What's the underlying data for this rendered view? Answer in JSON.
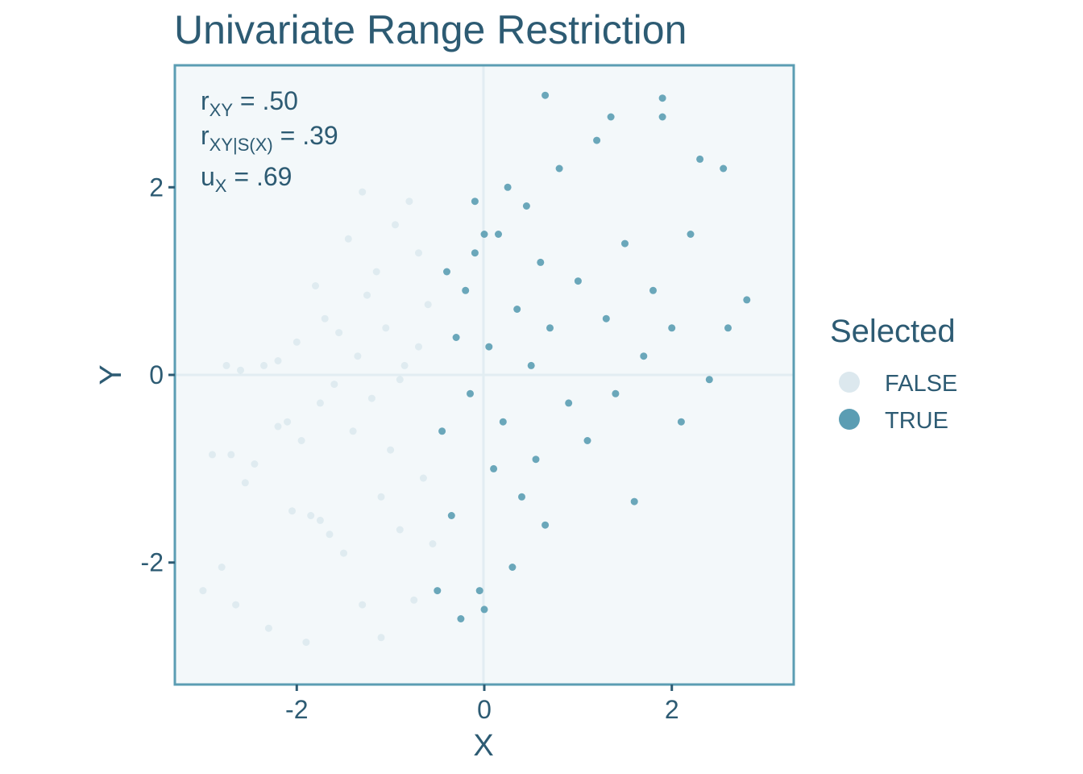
{
  "chart_data": {
    "type": "scatter",
    "title": "Univariate Range Restriction",
    "xlabel": "X",
    "ylabel": "Y",
    "xlim": [
      -3.3,
      3.3
    ],
    "ylim": [
      -3.3,
      3.3
    ],
    "x_ticks": [
      -2,
      0,
      2
    ],
    "y_ticks": [
      -2,
      0,
      2
    ],
    "x_tick_labels": [
      "-2",
      "0",
      "2"
    ],
    "y_tick_labels": [
      "-2",
      "0",
      "2"
    ],
    "grid": "major lines at 0",
    "selection_cutoff_x": -0.5,
    "annotation": {
      "r_xy": {
        "base": "r",
        "sub": "XY",
        "value": " = .50"
      },
      "r_xy_s": {
        "base": "r",
        "sub": "XY|S(X)",
        "value": " = .39"
      },
      "u_x": {
        "base": "u",
        "sub": "X",
        "value": " = .69"
      }
    },
    "legend": {
      "title": "Selected",
      "position": "right",
      "entries": [
        {
          "label": "FALSE",
          "color": "#dce8ee"
        },
        {
          "label": "TRUE",
          "color": "#5b9db3"
        }
      ]
    },
    "series": [
      {
        "name": "FALSE",
        "color": "#b9d4de",
        "opacity": 0.35,
        "x": [
          -3.0,
          -2.9,
          -2.8,
          -2.75,
          -2.7,
          -2.65,
          -2.6,
          -2.55,
          -2.45,
          -2.35,
          -2.3,
          -2.2,
          -2.1,
          -2.05,
          -2.0,
          -1.95,
          -1.9,
          -1.85,
          -1.8,
          -1.75,
          -1.7,
          -1.65,
          -1.6,
          -1.55,
          -1.5,
          -1.45,
          -1.4,
          -1.35,
          -1.3,
          -1.25,
          -1.2,
          -1.15,
          -1.1,
          -1.05,
          -1.0,
          -0.95,
          -0.9,
          -0.85,
          -0.8,
          -0.75,
          -0.7,
          -0.65,
          -0.6,
          -0.55,
          -1.3,
          -0.9,
          -1.75,
          -2.2,
          -1.1,
          -0.7
        ],
        "y": [
          -2.3,
          -0.85,
          -2.05,
          0.1,
          -0.85,
          -2.45,
          0.05,
          -1.15,
          -0.95,
          0.1,
          -2.7,
          0.15,
          -0.5,
          -1.45,
          0.35,
          -0.7,
          -2.85,
          -1.5,
          0.95,
          -0.3,
          0.6,
          -1.7,
          -0.1,
          0.45,
          -1.9,
          1.45,
          -0.6,
          0.2,
          -2.45,
          0.85,
          -0.25,
          1.1,
          -1.3,
          0.5,
          -0.8,
          1.6,
          -1.65,
          0.1,
          1.85,
          -2.4,
          0.3,
          -1.1,
          0.75,
          -1.8,
          1.95,
          -0.05,
          -1.55,
          -0.55,
          -2.8,
          1.3
        ]
      },
      {
        "name": "TRUE",
        "color": "#5b9db3",
        "opacity": 0.9,
        "x": [
          -0.5,
          -0.45,
          -0.4,
          -0.35,
          -0.3,
          -0.25,
          -0.2,
          -0.15,
          -0.1,
          -0.05,
          0.0,
          0.05,
          0.1,
          0.15,
          0.2,
          0.25,
          0.3,
          0.35,
          0.4,
          0.45,
          0.5,
          0.55,
          0.6,
          0.65,
          0.7,
          0.8,
          0.9,
          1.0,
          1.1,
          1.2,
          1.3,
          1.4,
          1.5,
          1.6,
          1.7,
          1.8,
          1.9,
          2.0,
          2.1,
          2.2,
          2.3,
          2.4,
          2.55,
          2.6,
          2.8,
          0.65,
          1.9,
          -0.1,
          0.0,
          1.35
        ],
        "y": [
          -2.3,
          -0.6,
          1.1,
          -1.5,
          0.4,
          -2.6,
          0.9,
          -0.2,
          1.3,
          -2.3,
          -2.5,
          0.3,
          -1.0,
          1.5,
          -0.5,
          2.0,
          -2.05,
          0.7,
          -1.3,
          1.8,
          0.1,
          -0.9,
          1.2,
          -1.6,
          0.5,
          2.2,
          -0.3,
          1.0,
          -0.7,
          2.5,
          0.6,
          -0.2,
          1.4,
          -1.35,
          0.2,
          0.9,
          2.95,
          0.5,
          -0.5,
          1.5,
          2.3,
          -0.05,
          2.2,
          0.5,
          0.8,
          2.98,
          2.75,
          1.85,
          1.5,
          2.75
        ]
      }
    ]
  }
}
